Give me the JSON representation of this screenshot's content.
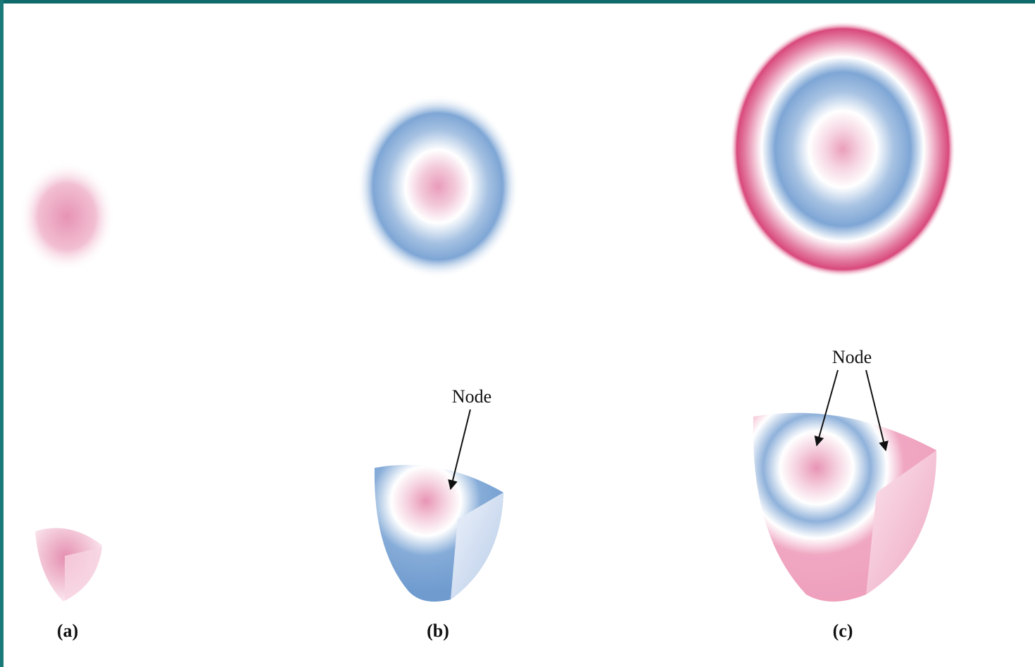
{
  "panels": [
    {
      "label": "(a)"
    },
    {
      "label": "(b)",
      "node_label": "Node"
    },
    {
      "label": "(c)",
      "node_label": "Node"
    }
  ]
}
